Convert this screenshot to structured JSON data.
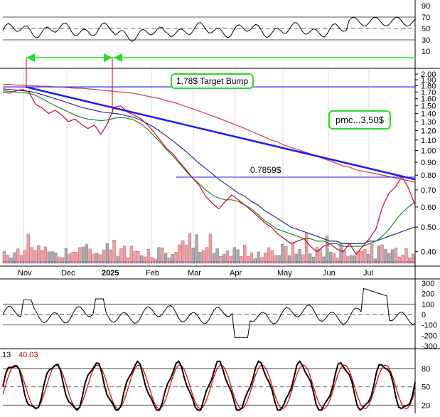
{
  "chart_data": [
    {
      "type": "line",
      "panel": "rsi",
      "y_ticks": [
        "90",
        "70",
        "50",
        "30",
        "10"
      ],
      "ylim": [
        10,
        90
      ],
      "guide_levels": [
        70,
        50,
        30
      ]
    },
    {
      "type": "line",
      "panel": "price",
      "y_ticks": [
        "2.00",
        "1.90",
        "1.80",
        "1.70",
        "1.60",
        "1.50",
        "1.40",
        "1.30",
        "1.20",
        "1.10",
        "1.00",
        "0.90",
        "0.80",
        "0.70",
        "0.60",
        "0.50",
        "0.40"
      ],
      "log_scale": true,
      "x_ticks": [
        "Nov",
        "Dec",
        "2025",
        "Feb",
        "Mar",
        "Apr",
        "May",
        "Jun",
        "Jul"
      ],
      "annotations": {
        "target": "1,78$ Target Bump",
        "pmc": "pmc...3,50$",
        "level": "0.7859$"
      },
      "horizontal_lines": [
        1.78,
        0.7859
      ],
      "trendline": {
        "from": {
          "x": "Nov",
          "y": 1.78
        },
        "to": {
          "x": "end",
          "y": 0.77
        }
      },
      "series": [
        {
          "values": [
            1.7,
            1.68,
            1.72,
            1.74,
            1.7,
            1.52,
            1.47,
            1.4,
            1.44,
            1.38,
            1.3,
            1.33,
            1.27,
            1.22,
            1.26,
            1.16,
            1.28,
            1.48,
            1.5,
            1.42,
            1.38,
            1.34,
            1.27,
            1.19,
            1.1,
            1.02,
            0.97,
            0.9,
            0.84,
            0.78,
            0.73,
            0.66,
            0.62,
            0.59,
            0.63,
            0.67,
            0.64,
            0.61,
            0.58,
            0.55,
            0.52,
            0.5,
            0.47,
            0.45,
            0.43,
            0.44,
            0.45,
            0.42,
            0.4,
            0.42,
            0.43,
            0.41,
            0.4,
            0.43,
            0.39,
            0.42,
            0.45,
            0.49,
            0.6,
            0.68,
            0.72,
            0.79,
            0.71,
            0.61
          ]
        },
        {
          "values": [
            1.72,
            1.71,
            1.7,
            1.69,
            1.68,
            1.65,
            1.6,
            1.55,
            1.5,
            1.46,
            1.42,
            1.38,
            1.35,
            1.33,
            1.32,
            1.31,
            1.32,
            1.34,
            1.35,
            1.34,
            1.32,
            1.28,
            1.22,
            1.15,
            1.08,
            1.01,
            0.95,
            0.89,
            0.83,
            0.78,
            0.74,
            0.7,
            0.67,
            0.65,
            0.64,
            0.64,
            0.63,
            0.61,
            0.59,
            0.56,
            0.53,
            0.51,
            0.49,
            0.48,
            0.47,
            0.46,
            0.45,
            0.45,
            0.44,
            0.44,
            0.43,
            0.43,
            0.42,
            0.42,
            0.42,
            0.42,
            0.43,
            0.44,
            0.46,
            0.49,
            0.53,
            0.57,
            0.6,
            0.63
          ]
        },
        {
          "values": [
            1.75,
            1.74,
            1.73,
            1.72,
            1.71,
            1.69,
            1.66,
            1.63,
            1.6,
            1.57,
            1.54,
            1.51,
            1.48,
            1.46,
            1.44,
            1.42,
            1.41,
            1.4,
            1.39,
            1.37,
            1.35,
            1.32,
            1.28,
            1.24,
            1.19,
            1.14,
            1.09,
            1.04,
            0.99,
            0.94,
            0.89,
            0.85,
            0.81,
            0.77,
            0.74,
            0.71,
            0.68,
            0.66,
            0.63,
            0.61,
            0.58,
            0.56,
            0.54,
            0.52,
            0.5,
            0.49,
            0.48,
            0.47,
            0.46,
            0.45,
            0.44,
            0.44,
            0.43,
            0.43,
            0.43,
            0.43,
            0.44,
            0.44,
            0.45,
            0.46,
            0.47,
            0.48,
            0.49,
            0.5
          ]
        },
        {
          "values": [
            1.82,
            1.82,
            1.81,
            1.81,
            1.8,
            1.8,
            1.79,
            1.79,
            1.78,
            1.78,
            1.77,
            1.76,
            1.76,
            1.75,
            1.74,
            1.73,
            1.72,
            1.71,
            1.7,
            1.69,
            1.68,
            1.66,
            1.64,
            1.62,
            1.6,
            1.57,
            1.55,
            1.52,
            1.49,
            1.46,
            1.43,
            1.4,
            1.37,
            1.34,
            1.31,
            1.28,
            1.25,
            1.22,
            1.19,
            1.16,
            1.13,
            1.1,
            1.08,
            1.05,
            1.03,
            1.01,
            0.99,
            0.97,
            0.95,
            0.93,
            0.91,
            0.89,
            0.87,
            0.86,
            0.84,
            0.83,
            0.82,
            0.81,
            0.8,
            0.79,
            0.78,
            0.77,
            0.76,
            0.75
          ]
        }
      ]
    },
    {
      "type": "line",
      "panel": "cci",
      "y_ticks": [
        "300",
        "200",
        "100",
        "0",
        "-100",
        "-200",
        "-300"
      ],
      "ylim": [
        -300,
        300
      ],
      "guide_levels": [
        100,
        0,
        -100
      ]
    },
    {
      "type": "line",
      "panel": "stochastic",
      "header": [
        ".13",
        "40.03"
      ],
      "y_ticks": [
        "80",
        "50",
        "20"
      ],
      "ylim": [
        10,
        95
      ],
      "guide_levels": [
        80,
        50,
        20
      ]
    }
  ],
  "colors": {
    "price": "#cc0033",
    "ema_fast": "#228822",
    "ema_mid": "#2a2aa8",
    "ema_slow": "#d05060",
    "trendline": "#1a1aff",
    "arrow": "#22dd22",
    "volume_up": "#aaaaaa",
    "volume_down": "#f0a0a0",
    "cci_pos": "#2e7d32",
    "cci_neg": "#8d4a3a"
  }
}
